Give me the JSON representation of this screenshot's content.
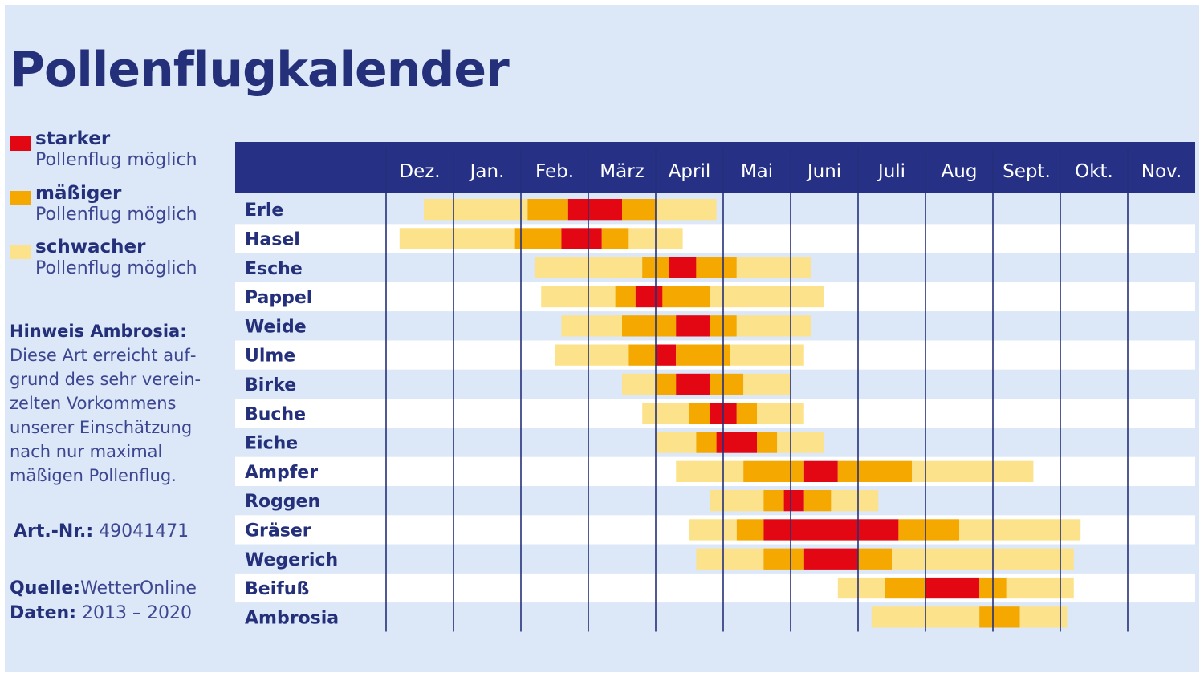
{
  "title": "Pollenflugkalender",
  "legend": [
    {
      "label": "starker",
      "sub": "Pollenflug möglich",
      "color": "#e30613"
    },
    {
      "label": "mäßiger",
      "sub": "Pollenflug möglich",
      "color": "#f5a800"
    },
    {
      "label": "schwacher",
      "sub": "Pollenflug möglich",
      "color": "#fde28c"
    }
  ],
  "hint": {
    "title": "Hinweis Ambrosia:",
    "text": "Diese Art erreicht auf­grund des sehr verein­zelten Vorkommens unserer Einschätzung nach nur maximal mäßigen Pollenflug."
  },
  "article": {
    "label": "Art.-Nr.:",
    "value": "49041471"
  },
  "source": {
    "label": "Quelle:",
    "value": "WetterOnline"
  },
  "data_period": {
    "label": "Daten:",
    "value": "2013 – 2020"
  },
  "colors": {
    "header": "#263186",
    "row_alt": "#dce8f8",
    "row_base": "#ffffff",
    "gridline": "#25307a",
    "strong": "#e30613",
    "moderate": "#f5a800",
    "weak": "#fde28c"
  },
  "chart_data": {
    "type": "table",
    "months": [
      "Dez.",
      "Jan.",
      "Feb.",
      "März",
      "April",
      "Mai",
      "Juni",
      "Juli",
      "Aug",
      "Sept.",
      "Okt.",
      "Nov."
    ],
    "levels": [
      "weak",
      "moderate",
      "strong"
    ],
    "plants": [
      {
        "name": "Erle",
        "segments": [
          [
            "weak",
            0.56,
            2.1
          ],
          [
            "moderate",
            2.1,
            2.7
          ],
          [
            "strong",
            2.7,
            3.5
          ],
          [
            "moderate",
            3.5,
            4.0
          ],
          [
            "weak",
            4.0,
            4.9
          ]
        ]
      },
      {
        "name": "Hasel",
        "segments": [
          [
            "weak",
            0.2,
            1.9
          ],
          [
            "moderate",
            1.9,
            2.6
          ],
          [
            "strong",
            2.6,
            3.2
          ],
          [
            "moderate",
            3.2,
            3.6
          ],
          [
            "weak",
            3.6,
            4.4
          ]
        ]
      },
      {
        "name": "Esche",
        "segments": [
          [
            "weak",
            2.2,
            3.8
          ],
          [
            "moderate",
            3.8,
            4.2
          ],
          [
            "strong",
            4.2,
            4.6
          ],
          [
            "moderate",
            4.6,
            5.2
          ],
          [
            "weak",
            5.2,
            6.3
          ]
        ]
      },
      {
        "name": "Pappel",
        "segments": [
          [
            "weak",
            2.3,
            3.4
          ],
          [
            "moderate",
            3.4,
            3.7
          ],
          [
            "strong",
            3.7,
            4.1
          ],
          [
            "moderate",
            4.1,
            4.8
          ],
          [
            "weak",
            4.8,
            6.5
          ]
        ]
      },
      {
        "name": "Weide",
        "segments": [
          [
            "weak",
            2.6,
            3.5
          ],
          [
            "moderate",
            3.5,
            4.3
          ],
          [
            "strong",
            4.3,
            4.8
          ],
          [
            "moderate",
            4.8,
            5.2
          ],
          [
            "weak",
            5.2,
            6.3
          ]
        ]
      },
      {
        "name": "Ulme",
        "segments": [
          [
            "weak",
            2.5,
            3.6
          ],
          [
            "moderate",
            3.6,
            4.0
          ],
          [
            "strong",
            4.0,
            4.3
          ],
          [
            "moderate",
            4.3,
            5.1
          ],
          [
            "weak",
            5.1,
            6.2
          ]
        ]
      },
      {
        "name": "Birke",
        "segments": [
          [
            "weak",
            3.5,
            4.0
          ],
          [
            "moderate",
            4.0,
            4.3
          ],
          [
            "strong",
            4.3,
            4.8
          ],
          [
            "moderate",
            4.8,
            5.3
          ],
          [
            "weak",
            5.3,
            6.0
          ]
        ]
      },
      {
        "name": "Buche",
        "segments": [
          [
            "weak",
            3.8,
            4.5
          ],
          [
            "moderate",
            4.5,
            4.8
          ],
          [
            "strong",
            4.8,
            5.2
          ],
          [
            "moderate",
            5.2,
            5.5
          ],
          [
            "weak",
            5.5,
            6.2
          ]
        ]
      },
      {
        "name": "Eiche",
        "segments": [
          [
            "weak",
            4.0,
            4.6
          ],
          [
            "moderate",
            4.6,
            4.9
          ],
          [
            "strong",
            4.9,
            5.5
          ],
          [
            "moderate",
            5.5,
            5.8
          ],
          [
            "weak",
            5.8,
            6.5
          ]
        ]
      },
      {
        "name": "Ampfer",
        "segments": [
          [
            "weak",
            4.3,
            5.3
          ],
          [
            "moderate",
            5.3,
            6.2
          ],
          [
            "strong",
            6.2,
            6.7
          ],
          [
            "moderate",
            6.7,
            7.8
          ],
          [
            "weak",
            7.8,
            9.6
          ]
        ]
      },
      {
        "name": "Roggen",
        "segments": [
          [
            "weak",
            4.8,
            5.6
          ],
          [
            "moderate",
            5.6,
            5.9
          ],
          [
            "strong",
            5.9,
            6.2
          ],
          [
            "moderate",
            6.2,
            6.6
          ],
          [
            "weak",
            6.6,
            7.3
          ]
        ]
      },
      {
        "name": "Gräser",
        "segments": [
          [
            "weak",
            4.5,
            5.2
          ],
          [
            "moderate",
            5.2,
            5.6
          ],
          [
            "strong",
            5.6,
            7.6
          ],
          [
            "moderate",
            7.6,
            8.5
          ],
          [
            "weak",
            8.5,
            10.3
          ]
        ]
      },
      {
        "name": "Wegerich",
        "segments": [
          [
            "weak",
            4.6,
            5.6
          ],
          [
            "moderate",
            5.6,
            6.2
          ],
          [
            "strong",
            6.2,
            7.0
          ],
          [
            "moderate",
            7.0,
            7.5
          ],
          [
            "weak",
            7.5,
            10.2
          ]
        ]
      },
      {
        "name": "Beifuß",
        "segments": [
          [
            "weak",
            6.7,
            7.4
          ],
          [
            "moderate",
            7.4,
            8.0
          ],
          [
            "strong",
            8.0,
            8.8
          ],
          [
            "moderate",
            8.8,
            9.2
          ],
          [
            "weak",
            9.2,
            10.2
          ]
        ]
      },
      {
        "name": "Ambrosia",
        "segments": [
          [
            "weak",
            7.2,
            8.8
          ],
          [
            "moderate",
            8.8,
            9.4
          ],
          [
            "weak",
            9.4,
            10.1
          ]
        ]
      }
    ]
  }
}
